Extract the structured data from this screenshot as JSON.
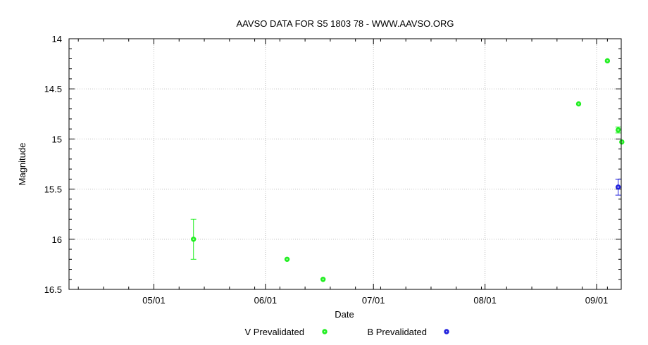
{
  "chart_data": {
    "type": "scatter",
    "title": "AAVSO DATA FOR S5 1803 78 - WWW.AAVSO.ORG",
    "xlabel": "Date",
    "ylabel": "Magnitude",
    "x_ticks": [
      "05/01",
      "06/01",
      "07/01",
      "08/01",
      "09/01"
    ],
    "y_ticks": [
      "14",
      "14.5",
      "15",
      "15.5",
      "16",
      "16.5"
    ],
    "xlim": [
      "2020-04-09",
      "2020-09-07"
    ],
    "ylim": [
      16.5,
      14
    ],
    "y_inverted": true,
    "grid": true,
    "legend_position": "bottom",
    "series": [
      {
        "name": "V Prevalidated",
        "color": "#22ee22",
        "points": [
          {
            "date": "2020-05-11",
            "mag": 16.0,
            "err": 0.2
          },
          {
            "date": "2020-06-06",
            "mag": 16.2,
            "err": 0
          },
          {
            "date": "2020-06-16",
            "mag": 16.4,
            "err": 0
          },
          {
            "date": "2020-08-26",
            "mag": 14.65,
            "err": 0
          },
          {
            "date": "2020-09-03",
            "mag": 14.22,
            "err": 0
          },
          {
            "date": "2020-09-06",
            "mag": 14.91,
            "err": 0.03
          },
          {
            "date": "2020-09-07",
            "mag": 15.03,
            "err": 0
          }
        ]
      },
      {
        "name": "B Prevalidated",
        "color": "#2222dd",
        "points": [
          {
            "date": "2020-09-06",
            "mag": 15.48,
            "err": 0.08
          }
        ]
      }
    ]
  }
}
